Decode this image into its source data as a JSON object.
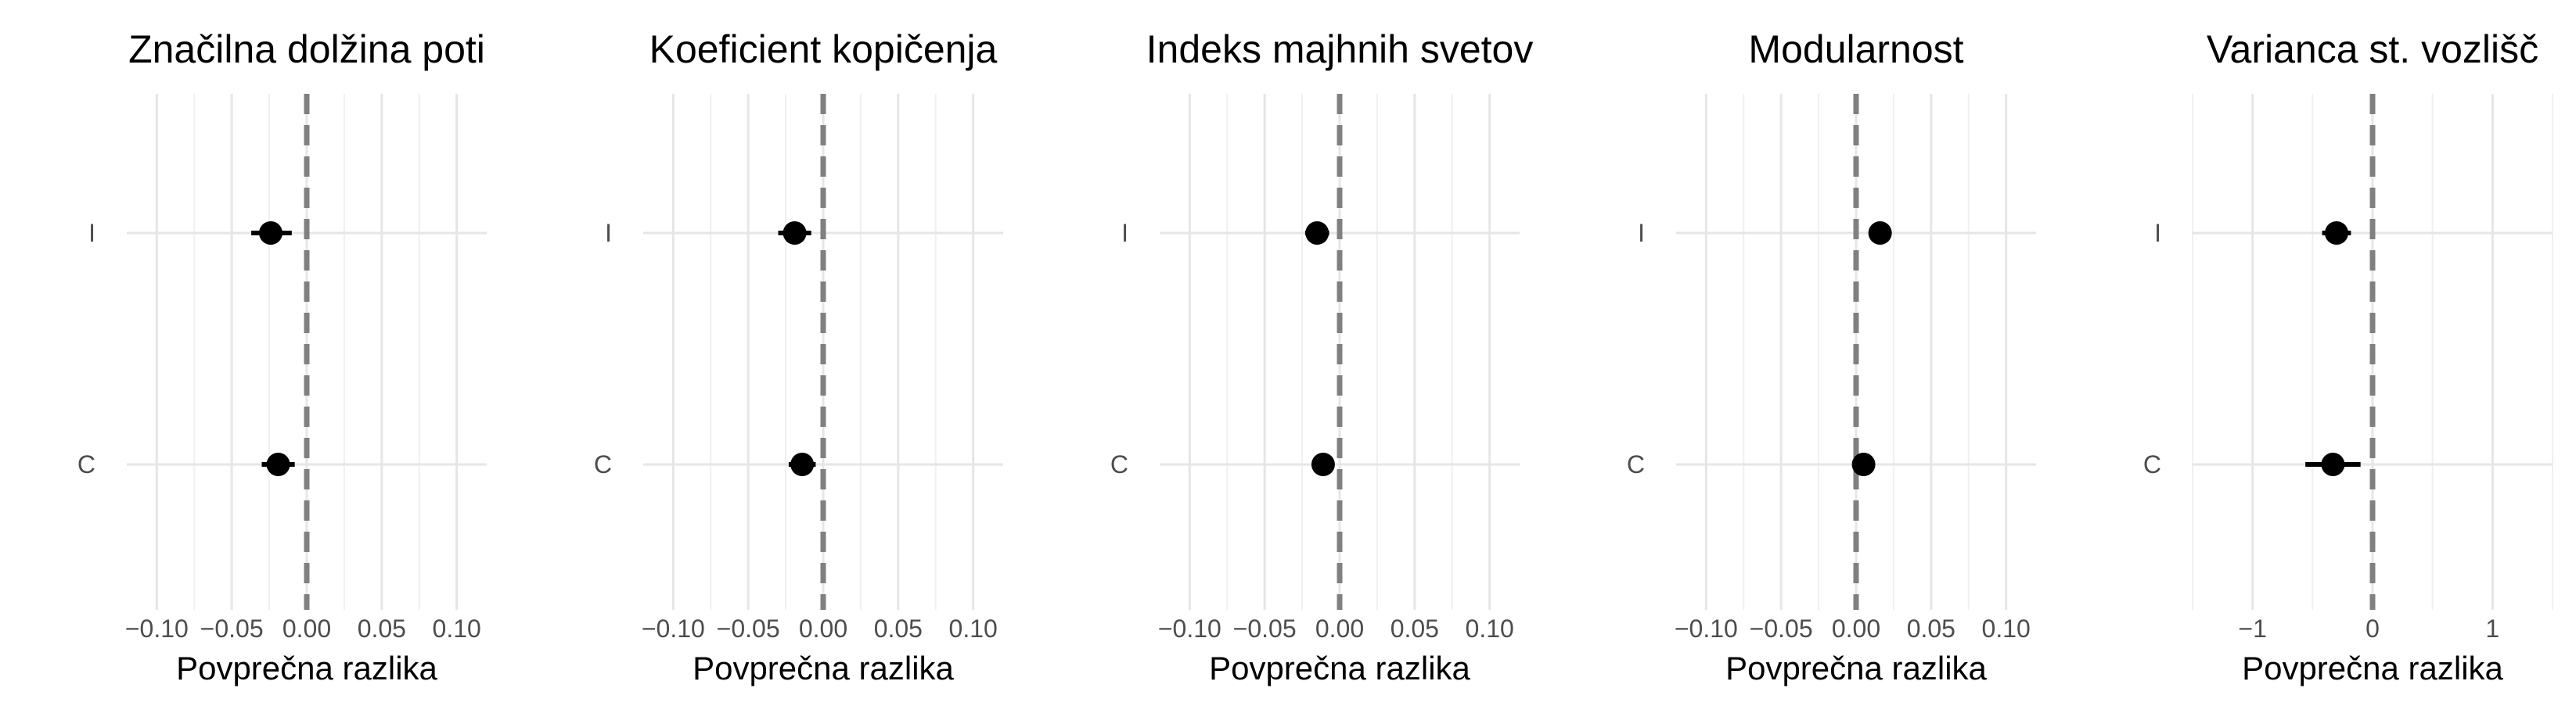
{
  "chart_data": [
    {
      "type": "scatter",
      "title": "Značilna dolžina poti",
      "xlabel": "Povprečna razlika",
      "ylabel": "",
      "xlim": [
        -0.12,
        0.12
      ],
      "xticks": [
        -0.1,
        -0.05,
        0.0,
        0.05,
        0.1
      ],
      "xtick_labels": [
        "−0.10",
        "−0.05",
        "0.00",
        "0.05",
        "0.10"
      ],
      "categories": [
        "I",
        "C"
      ],
      "points": [
        {
          "category": "I",
          "x": -0.024,
          "low": -0.037,
          "high": -0.01
        },
        {
          "category": "C",
          "x": -0.019,
          "low": -0.03,
          "high": -0.008
        }
      ],
      "reference_line": 0,
      "grid": true
    },
    {
      "type": "scatter",
      "title": "Koeficient kopičenja",
      "xlabel": "Povprečna razlika",
      "ylabel": "",
      "xlim": [
        -0.12,
        0.12
      ],
      "xticks": [
        -0.1,
        -0.05,
        0.0,
        0.05,
        0.1
      ],
      "xtick_labels": [
        "−0.10",
        "−0.05",
        "0.00",
        "0.05",
        "0.10"
      ],
      "categories": [
        "I",
        "C"
      ],
      "points": [
        {
          "category": "I",
          "x": -0.019,
          "low": -0.03,
          "high": -0.008
        },
        {
          "category": "C",
          "x": -0.014,
          "low": -0.023,
          "high": -0.005
        }
      ],
      "reference_line": 0,
      "grid": true
    },
    {
      "type": "scatter",
      "title": "Indeks majhnih svetov",
      "xlabel": "Povprečna razlika",
      "ylabel": "",
      "xlim": [
        -0.12,
        0.12
      ],
      "xticks": [
        -0.1,
        -0.05,
        0.0,
        0.05,
        0.1
      ],
      "xtick_labels": [
        "−0.10",
        "−0.05",
        "0.00",
        "0.05",
        "0.10"
      ],
      "categories": [
        "I",
        "C"
      ],
      "points": [
        {
          "category": "I",
          "x": -0.015,
          "low": -0.023,
          "high": -0.007
        },
        {
          "category": "C",
          "x": -0.011,
          "low": -0.018,
          "high": -0.004
        }
      ],
      "reference_line": 0,
      "grid": true
    },
    {
      "type": "scatter",
      "title": "Modularnost",
      "xlabel": "Povprečna razlika",
      "ylabel": "",
      "xlim": [
        -0.12,
        0.12
      ],
      "xticks": [
        -0.1,
        -0.05,
        0.0,
        0.05,
        0.1
      ],
      "xtick_labels": [
        "−0.10",
        "−0.05",
        "0.00",
        "0.05",
        "0.10"
      ],
      "categories": [
        "I",
        "C"
      ],
      "points": [
        {
          "category": "I",
          "x": 0.016,
          "low": 0.011,
          "high": 0.021
        },
        {
          "category": "C",
          "x": 0.005,
          "low": 0.001,
          "high": 0.009
        }
      ],
      "reference_line": 0,
      "grid": true
    },
    {
      "type": "scatter",
      "title": "Varianca st. vozlišč",
      "xlabel": "Povprečna razlika",
      "ylabel": "",
      "xlim": [
        -1.5,
        1.5
      ],
      "xticks": [
        -1,
        0,
        1
      ],
      "xtick_labels": [
        "−1",
        "0",
        "1"
      ],
      "categories": [
        "I",
        "C"
      ],
      "points": [
        {
          "category": "I",
          "x": -0.3,
          "low": -0.42,
          "high": -0.18
        },
        {
          "category": "C",
          "x": -0.33,
          "low": -0.56,
          "high": -0.1
        }
      ],
      "reference_line": 0,
      "grid": true
    }
  ]
}
